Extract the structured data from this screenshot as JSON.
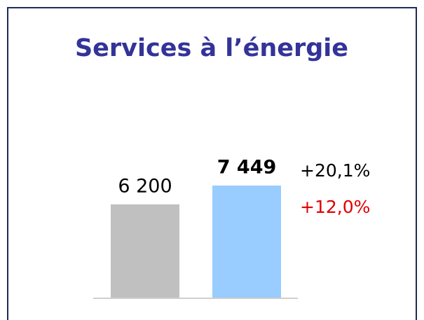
{
  "chart_data": {
    "type": "bar",
    "title": "Services à l’énergie",
    "categories": [
      null,
      null
    ],
    "values": [
      6200,
      7449
    ],
    "value_labels": [
      "6 200",
      "7 449"
    ],
    "colors": [
      "#c0c0c0",
      "#99ccff"
    ],
    "annotations": [
      {
        "text": "+20,1%",
        "color": "#000000"
      },
      {
        "text": "+12,0%",
        "color": "#e00000"
      }
    ]
  }
}
